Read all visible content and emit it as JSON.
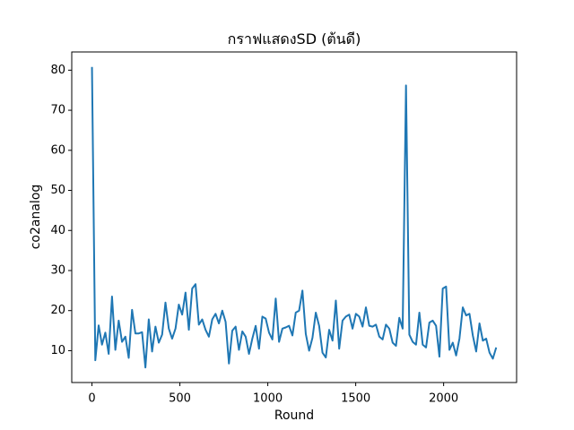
{
  "chart_data": {
    "type": "line",
    "title": "กราฟแสดงSD (ต้นดี)",
    "xlabel": "Round",
    "ylabel": "co2analog",
    "color": "#1f77b4",
    "x": [
      0,
      19,
      38,
      57,
      76,
      95,
      114,
      133,
      152,
      171,
      190,
      209,
      228,
      247,
      266,
      285,
      304,
      323,
      342,
      361,
      380,
      399,
      418,
      437,
      456,
      475,
      494,
      513,
      532,
      551,
      570,
      589,
      608,
      627,
      646,
      665,
      684,
      703,
      722,
      741,
      760,
      779,
      798,
      817,
      836,
      855,
      874,
      893,
      912,
      931,
      950,
      969,
      988,
      1007,
      1026,
      1045,
      1064,
      1083,
      1102,
      1121,
      1140,
      1159,
      1178,
      1197,
      1216,
      1235,
      1254,
      1273,
      1292,
      1311,
      1330,
      1349,
      1368,
      1387,
      1406,
      1425,
      1444,
      1463,
      1482,
      1501,
      1520,
      1539,
      1558,
      1577,
      1596,
      1615,
      1634,
      1653,
      1672,
      1691,
      1710,
      1729,
      1748,
      1767,
      1786,
      1805,
      1824,
      1843,
      1862,
      1881,
      1900,
      1919,
      1938,
      1957,
      1976,
      1995,
      2014,
      2033,
      2052,
      2071,
      2090,
      2109,
      2128,
      2147,
      2166,
      2185,
      2204,
      2223,
      2242,
      2261,
      2280,
      2299
    ],
    "values": [
      80.8,
      7.6,
      16.3,
      11.5,
      14.5,
      9.2,
      23.5,
      10.2,
      17.5,
      12.2,
      13.5,
      8.2,
      20.2,
      14.3,
      14.3,
      14.6,
      5.8,
      17.8,
      9.8,
      16,
      12,
      14,
      22,
      15.5,
      13,
      15.5,
      21.5,
      19,
      24.5,
      15.2,
      25.5,
      26.6,
      16.5,
      17.8,
      15.2,
      13.5,
      17.8,
      19.2,
      16.8,
      20,
      17.2,
      6.8,
      15,
      16,
      10.2,
      14.8,
      13.5,
      9.2,
      13,
      16.2,
      10.5,
      18.5,
      18,
      14.5,
      12.8,
      23,
      12.2,
      15.5,
      15.8,
      16.2,
      13.8,
      19.5,
      20,
      25,
      14.2,
      10,
      13.2,
      19.5,
      16.2,
      9.5,
      8.3,
      15.2,
      12.5,
      22.5,
      10.5,
      17.5,
      18.5,
      19,
      15.5,
      19.2,
      18.5,
      16,
      20.8,
      16.2,
      16,
      16.5,
      13.5,
      12.8,
      16.5,
      15.5,
      12,
      11.2,
      18.2,
      15.5,
      76.2,
      14,
      12.2,
      11.5,
      19.5,
      11.5,
      10.8,
      17,
      17.5,
      16.2,
      8.5,
      25.5,
      26,
      10.2,
      12,
      8.8,
      13,
      20.8,
      18.8,
      19.2,
      13.8,
      9.8,
      16.8,
      12.5,
      13,
      9.5,
      8,
      10.8
    ],
    "xlim": [
      -115,
      2415
    ],
    "ylim": [
      2.05,
      84.55
    ],
    "xticks": [
      0,
      500,
      1000,
      1500,
      2000
    ],
    "yticks": [
      10,
      20,
      30,
      40,
      50,
      60,
      70,
      80
    ]
  }
}
